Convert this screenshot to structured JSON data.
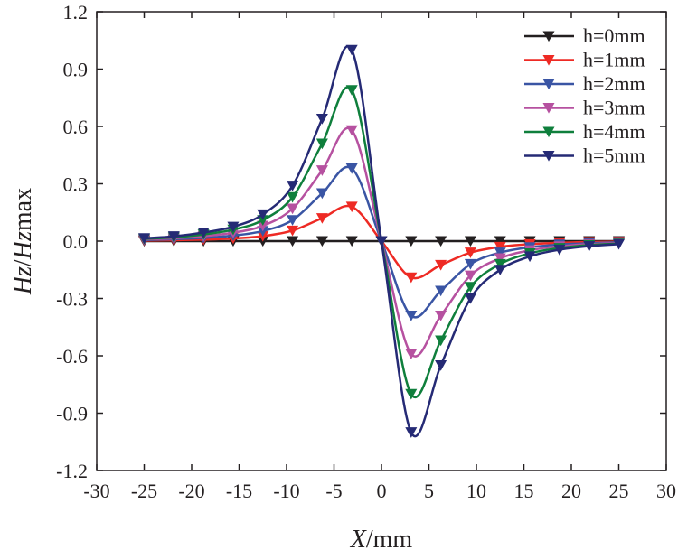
{
  "chart_data": {
    "type": "line",
    "title": "",
    "xlabel": "X/mm",
    "xlabel_italic": "X",
    "xlabel_rest": "/mm",
    "ylabel": "Hz/Hzmax",
    "xlim": [
      -30,
      30
    ],
    "ylim": [
      -1.2,
      1.2
    ],
    "xticks": [
      -30,
      -25,
      -20,
      -15,
      -10,
      -5,
      0,
      5,
      10,
      15,
      20,
      25,
      30
    ],
    "yticks": [
      -1.2,
      -0.9,
      -0.6,
      -0.3,
      0.0,
      0.3,
      0.6,
      0.9,
      1.2
    ],
    "xtick_labels": [
      "-30",
      "-25",
      "-20",
      "-15",
      "-10",
      "-5",
      "0",
      "5",
      "10",
      "15",
      "20",
      "25",
      "30"
    ],
    "ytick_labels": [
      "-1.2",
      "-0.9",
      "-0.6",
      "-0.3",
      "0.0",
      "0.3",
      "0.6",
      "0.9",
      "1.2"
    ],
    "legend_position": "top-right",
    "grid": false,
    "marker": "triangle-down",
    "x": [
      -25,
      -21.875,
      -18.75,
      -15.625,
      -12.5,
      -9.375,
      -6.25,
      -3.125,
      0,
      3.125,
      6.25,
      9.375,
      12.5,
      15.625,
      18.75,
      21.875,
      25
    ],
    "series": [
      {
        "name": "h=0mm",
        "color": "#231f20",
        "values": [
          0,
          0,
          0,
          0,
          0,
          0,
          0,
          0,
          0,
          0,
          0,
          0,
          0,
          0,
          0,
          0,
          0
        ]
      },
      {
        "name": "h=1mm",
        "color": "#ee2a24",
        "values": [
          0.003,
          0.005,
          0.008,
          0.014,
          0.026,
          0.055,
          0.12,
          0.18,
          0,
          -0.19,
          -0.125,
          -0.06,
          -0.03,
          -0.016,
          -0.009,
          -0.005,
          -0.003
        ]
      },
      {
        "name": "h=2mm",
        "color": "#3a55a4",
        "values": [
          0.006,
          0.01,
          0.017,
          0.029,
          0.053,
          0.11,
          0.25,
          0.38,
          0,
          -0.39,
          -0.26,
          -0.12,
          -0.06,
          -0.032,
          -0.018,
          -0.011,
          -0.006
        ]
      },
      {
        "name": "h=3mm",
        "color": "#b651a0",
        "values": [
          0.009,
          0.015,
          0.026,
          0.044,
          0.08,
          0.17,
          0.37,
          0.58,
          0,
          -0.59,
          -0.39,
          -0.18,
          -0.09,
          -0.048,
          -0.027,
          -0.016,
          -0.01
        ]
      },
      {
        "name": "h=4mm",
        "color": "#0f7f3c",
        "values": [
          0.012,
          0.02,
          0.035,
          0.06,
          0.11,
          0.23,
          0.51,
          0.79,
          0,
          -0.8,
          -0.52,
          -0.24,
          -0.12,
          -0.064,
          -0.036,
          -0.021,
          -0.013
        ]
      },
      {
        "name": "h=5mm",
        "color": "#252a75",
        "values": [
          0.015,
          0.025,
          0.045,
          0.075,
          0.14,
          0.29,
          0.64,
          1.0,
          0,
          -1.0,
          -0.65,
          -0.3,
          -0.15,
          -0.08,
          -0.045,
          -0.026,
          -0.016
        ]
      }
    ]
  }
}
